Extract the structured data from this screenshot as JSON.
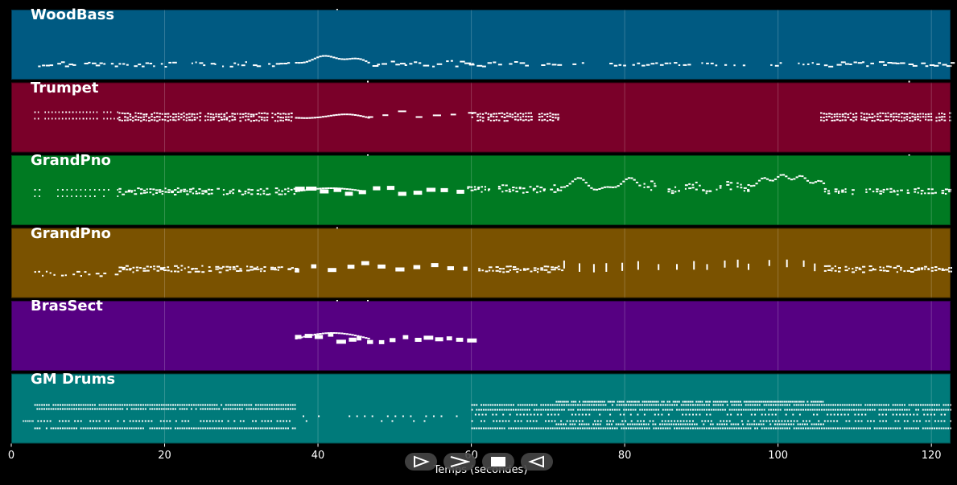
{
  "tracks": [
    {
      "name": "WoodBass",
      "color": "#005a82",
      "pattern": "bass"
    },
    {
      "name": "Trumpet",
      "color": "#7a0029",
      "pattern": "trumpet"
    },
    {
      "name": "GrandPno",
      "color": "#007a22",
      "pattern": "piano1"
    },
    {
      "name": "GrandPno",
      "color": "#7a5200",
      "pattern": "piano2"
    },
    {
      "name": "BrasSect",
      "color": "#560082",
      "pattern": "brass"
    },
    {
      "name": "GM Drums",
      "color": "#007a7a",
      "pattern": "drums"
    }
  ],
  "x_axis": {
    "label": "Temps (secondes)",
    "ticks": [
      "0",
      "20",
      "40",
      "60",
      "80",
      "100",
      "120"
    ],
    "min": 0,
    "max": 122.5
  },
  "controls": {
    "play_icon": "play-outline-icon",
    "fast_forward_icon": "fast-forward-icon",
    "stop_icon": "stop-icon",
    "rewind_icon": "rewind-icon"
  }
}
